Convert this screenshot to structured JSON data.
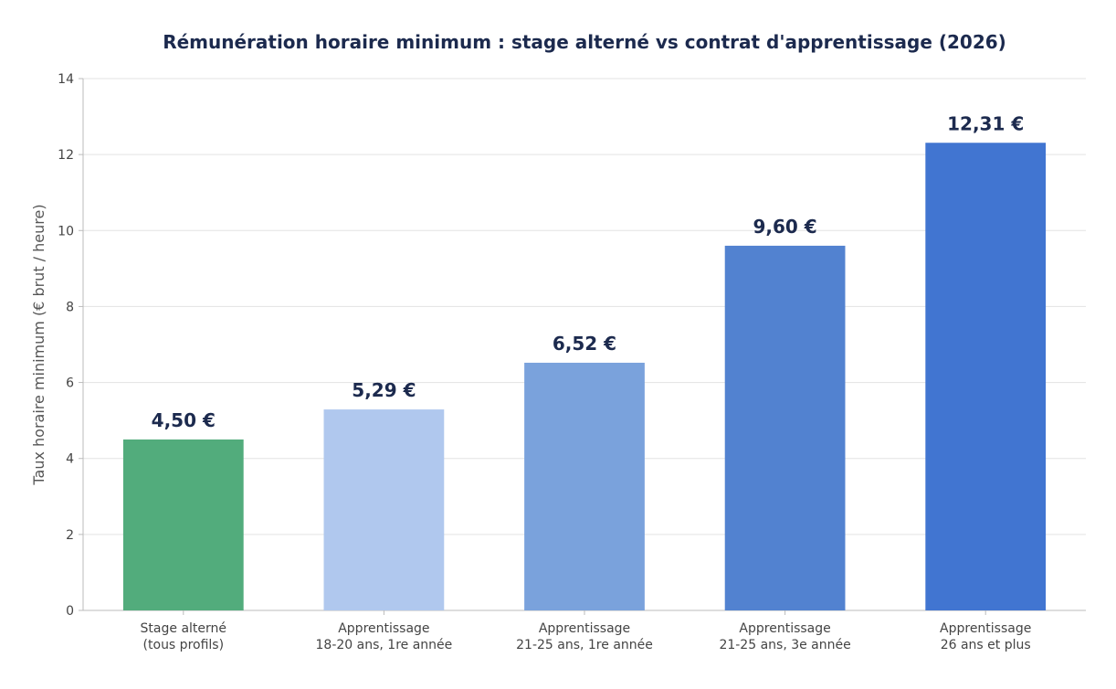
{
  "chart_data": {
    "type": "bar",
    "title": "Rémunération horaire minimum : stage alterné vs contrat d'apprentissage (2026)",
    "xlabel": "",
    "ylabel": "Taux horaire minimum (€ brut / heure)",
    "ylim": [
      0,
      14
    ],
    "yticks": [
      0,
      2,
      4,
      6,
      8,
      10,
      12,
      14
    ],
    "grid": "horizontal",
    "categories": [
      [
        "Stage alterné",
        "(tous profils)"
      ],
      [
        "Apprentissage",
        "18-20 ans, 1re année"
      ],
      [
        "Apprentissage",
        "21-25 ans, 1re année"
      ],
      [
        "Apprentissage",
        "21-25 ans, 3e année"
      ],
      [
        "Apprentissage",
        "26 ans et plus"
      ]
    ],
    "values": [
      4.5,
      5.29,
      6.52,
      9.6,
      12.31
    ],
    "value_labels": [
      "4,50 €",
      "5,29 €",
      "6,52 €",
      "9,60 €",
      "12,31 €"
    ],
    "colors": [
      "#52ac7c",
      "#b0c8ee",
      "#7aa2dc",
      "#5282d0",
      "#4175d1"
    ],
    "text_color": "#1c2a4e",
    "grid_color": "#e3e3e3",
    "axis_color": "#bbbbbb"
  }
}
